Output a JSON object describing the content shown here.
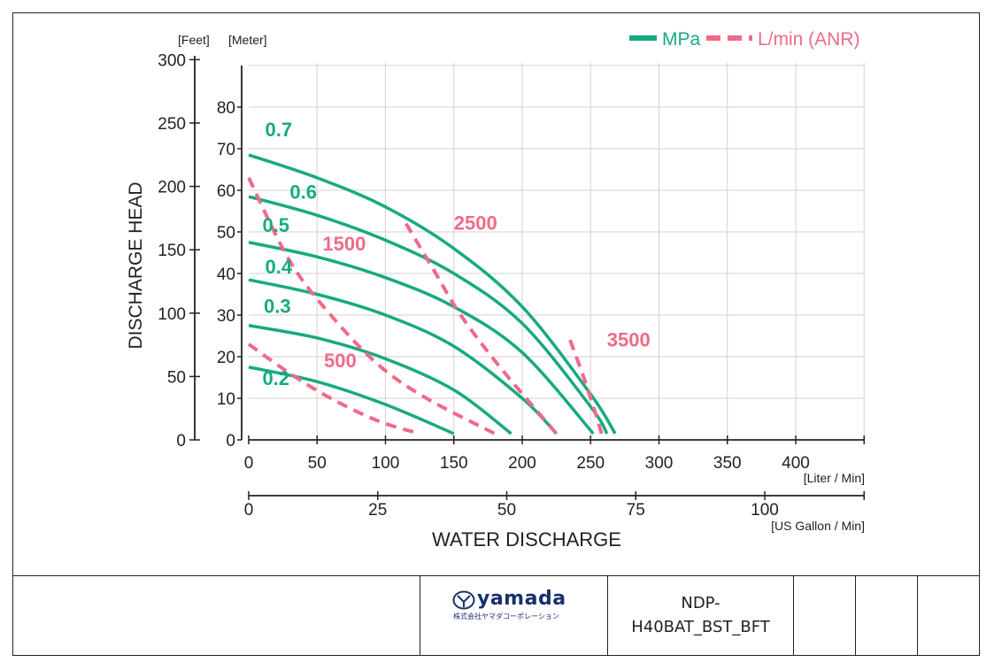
{
  "chart_data": {
    "type": "line",
    "y_units": [
      "[Feet]",
      "[Meter]"
    ],
    "ylabel": "DISCHARGE HEAD",
    "xlabel": "WATER DISCHARGE",
    "x_primary_unit": "[Liter / Min]",
    "x_secondary_unit": "[US Gallon / Min]",
    "xlim": [
      0,
      450
    ],
    "ylim_meter": [
      0,
      90
    ],
    "x_ticks": [
      "0",
      "50",
      "100",
      "150",
      "200",
      "250",
      "300",
      "350",
      "400"
    ],
    "y_meter_ticks": [
      "0",
      "10",
      "20",
      "30",
      "40",
      "50",
      "60",
      "70",
      "80"
    ],
    "y_feet_ticks": [
      "0",
      "50",
      "100",
      "150",
      "200",
      "250",
      "300"
    ],
    "x_gallon_ticks": [
      "0",
      "25",
      "50",
      "75",
      "100"
    ],
    "grid": true,
    "legend": {
      "position": "top-right",
      "items": [
        {
          "label": "MPa",
          "style": "solid",
          "color": "#17a982"
        },
        {
          "label": "L/min (ANR)",
          "style": "dashed",
          "color": "#ee6b87"
        }
      ]
    },
    "series": [
      {
        "name": "0.7",
        "kind": "pressure",
        "x": [
          0,
          50,
          100,
          150,
          200,
          250,
          268
        ],
        "y": [
          68.5,
          63,
          56,
          46,
          32,
          11,
          1.5
        ]
      },
      {
        "name": "0.6",
        "kind": "pressure",
        "x": [
          0,
          50,
          100,
          150,
          200,
          250,
          262
        ],
        "y": [
          58.5,
          54,
          48,
          40,
          28,
          8,
          1.5
        ]
      },
      {
        "name": "0.5",
        "kind": "pressure",
        "x": [
          0,
          50,
          100,
          150,
          200,
          252
        ],
        "y": [
          47.5,
          44,
          39,
          32,
          21,
          1.5
        ]
      },
      {
        "name": "0.4",
        "kind": "pressure",
        "x": [
          0,
          50,
          100,
          150,
          200,
          225
        ],
        "y": [
          38.5,
          35,
          30,
          22.5,
          10,
          1.5
        ]
      },
      {
        "name": "0.3",
        "kind": "pressure",
        "x": [
          0,
          50,
          100,
          150,
          192
        ],
        "y": [
          27.5,
          24.5,
          19.5,
          12,
          1.5
        ]
      },
      {
        "name": "0.2",
        "kind": "pressure",
        "x": [
          0,
          50,
          100,
          150
        ],
        "y": [
          17.5,
          14,
          8.5,
          1.5
        ]
      },
      {
        "name": "500",
        "kind": "air",
        "x": [
          0,
          30,
          60,
          95,
          125
        ],
        "y": [
          23,
          16,
          10,
          4.5,
          1.5
        ]
      },
      {
        "name": "1500",
        "kind": "air",
        "x": [
          0,
          30,
          60,
          95,
          130,
          180
        ],
        "y": [
          63,
          43,
          30,
          18,
          10,
          1.5
        ]
      },
      {
        "name": "2500",
        "kind": "air",
        "x": [
          115,
          135,
          155,
          185,
          225
        ],
        "y": [
          52,
          41,
          30,
          17,
          1.5
        ]
      },
      {
        "name": "3500",
        "kind": "air",
        "x": [
          235,
          245,
          253,
          258
        ],
        "y": [
          24,
          15,
          7,
          1.5
        ]
      }
    ],
    "labels": [
      {
        "text": "0.7",
        "kind": "pressure",
        "x": 12,
        "y": 73
      },
      {
        "text": "0.6",
        "kind": "pressure",
        "x": 30,
        "y": 58
      },
      {
        "text": "0.5",
        "kind": "pressure",
        "x": 10,
        "y": 50
      },
      {
        "text": "0.4",
        "kind": "pressure",
        "x": 12,
        "y": 40
      },
      {
        "text": "0.3",
        "kind": "pressure",
        "x": 11,
        "y": 30.5
      },
      {
        "text": "0.2",
        "kind": "pressure",
        "x": 10,
        "y": 13.2
      },
      {
        "text": "500",
        "kind": "air",
        "x": 55,
        "y": 17.5
      },
      {
        "text": "1500",
        "kind": "air",
        "x": 54,
        "y": 45.5
      },
      {
        "text": "2500",
        "kind": "air",
        "x": 150,
        "y": 50.5
      },
      {
        "text": "3500",
        "kind": "air",
        "x": 262,
        "y": 22.5
      }
    ]
  },
  "title_block": {
    "brand": "yamada",
    "company_jp": "株式会社ヤマダコーポレーション",
    "model": "NDP-H40BAT_BST_BFT"
  }
}
